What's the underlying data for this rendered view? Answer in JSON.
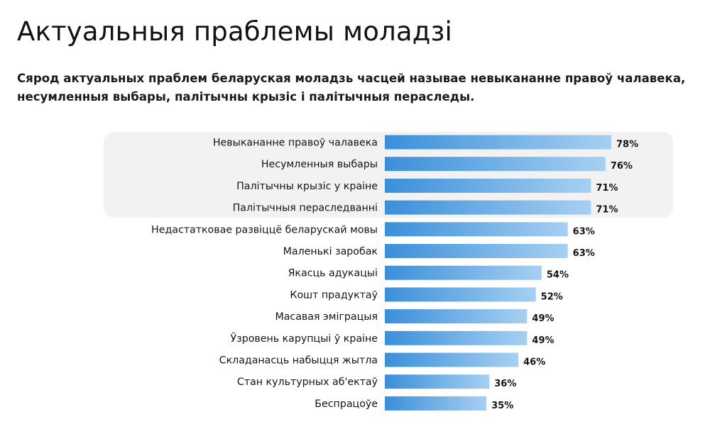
{
  "header": {
    "title": "Актуальныя праблемы моладзі",
    "subtitle": "Сярод актуальных праблем беларуская моладзь часцей называе невыкананне правоў чалавека, несумленныя выбары, палітычны крызіс і палітычныя пераследы."
  },
  "colors": {
    "bar_start": "#3a8fda",
    "bar_end": "#a7d0f2",
    "highlight_background": "#f2f2f2"
  },
  "chart_data": {
    "type": "bar",
    "orientation": "horizontal",
    "value_format": "percent",
    "xlim": [
      0,
      100
    ],
    "highlighted_count": 4,
    "categories": [
      "Невыкананне правоў чалавека",
      "Несумленныя выбары",
      "Палітычны крызіс у краіне",
      "Палітычныя пераследванні",
      "Недастатковае развіццё беларускай мовы",
      "Маленькі заробак",
      "Якасць адукацыі",
      "Кошт прадуктаў",
      "Масавая эміграцыя",
      "Ўзровень карупцыі ў краіне",
      "Складанасць набыцця жытла",
      "Стан культурных аб'ектаў",
      "Беспрацоўе"
    ],
    "values": [
      78,
      76,
      71,
      71,
      63,
      63,
      54,
      52,
      49,
      49,
      46,
      36,
      35
    ],
    "value_labels": [
      "78%",
      "76%",
      "71%",
      "71%",
      "63%",
      "63%",
      "54%",
      "52%",
      "49%",
      "49%",
      "46%",
      "36%",
      "35%"
    ]
  }
}
